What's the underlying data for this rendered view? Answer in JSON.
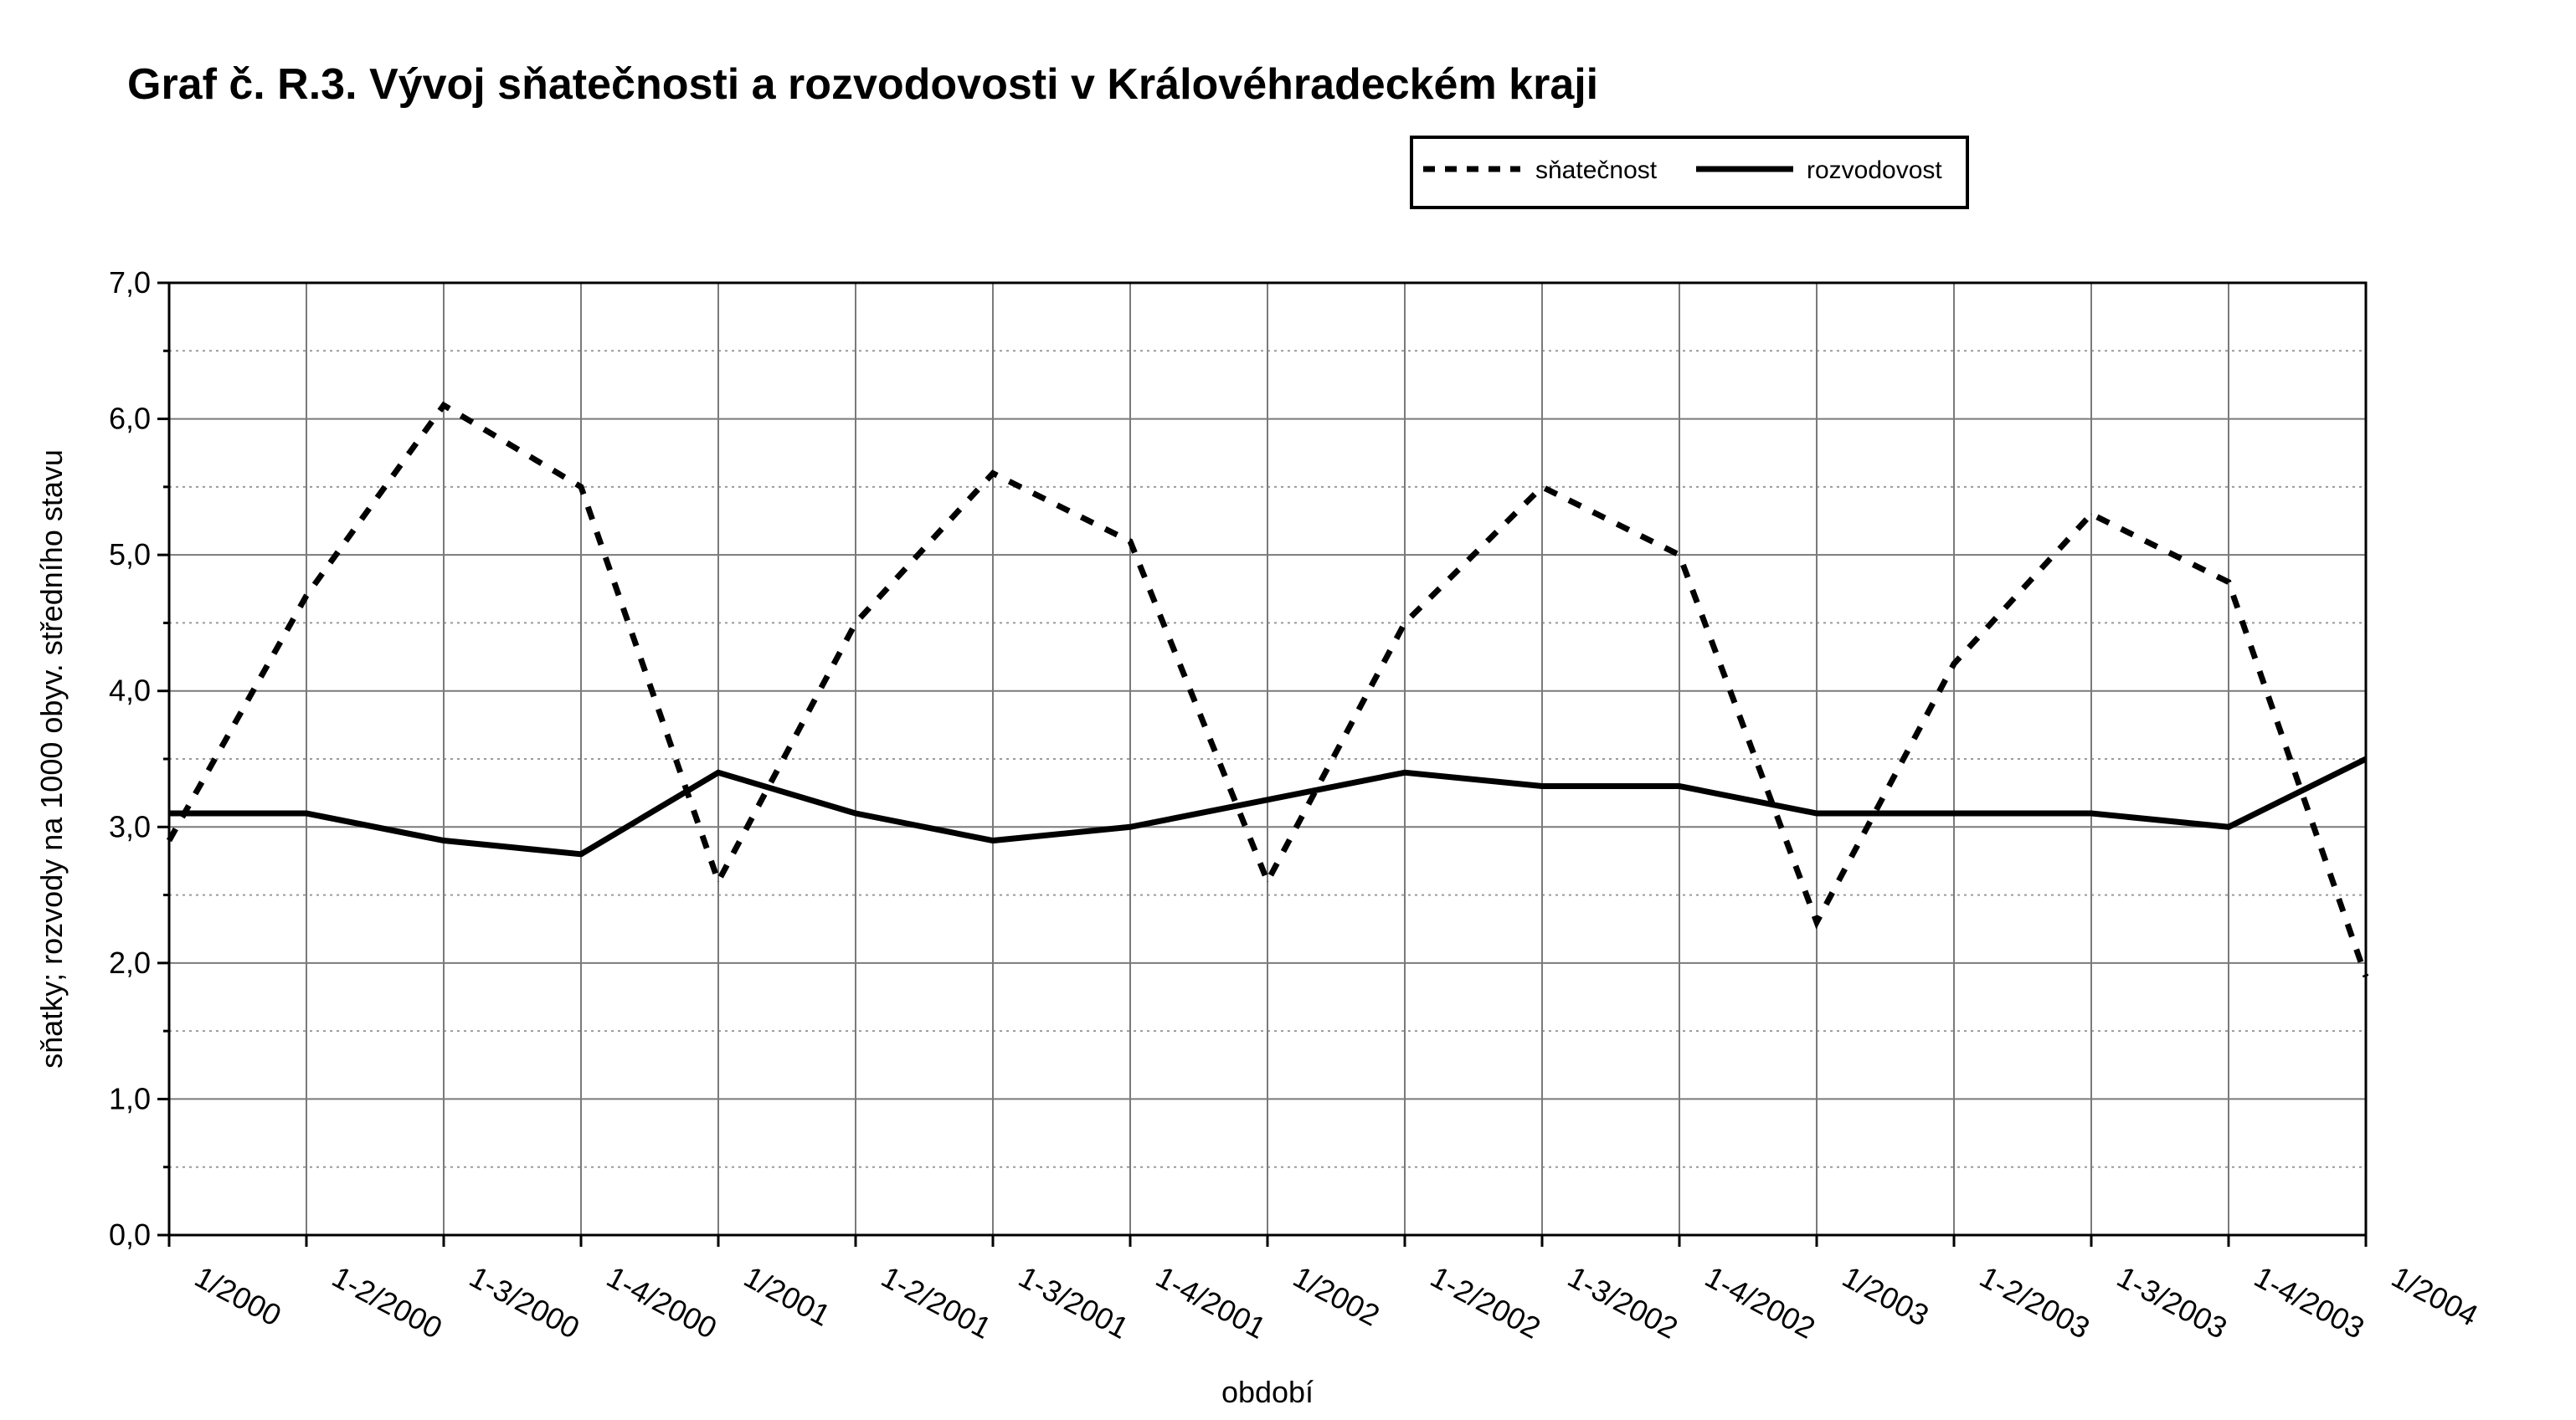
{
  "chart_data": {
    "type": "line",
    "title": "Graf č. R.3. Vývoj sňatečnosti a rozvodovosti v Královéhradeckém kraji",
    "xlabel": "období",
    "ylabel": "sňatky; rozvody na 1000 obyv. středního stavu",
    "ylim": [
      0,
      7
    ],
    "y_ticks": [
      "0,0",
      "1,0",
      "2,0",
      "3,0",
      "4,0",
      "5,0",
      "6,0",
      "7,0"
    ],
    "grid": true,
    "legend_position": "top-right",
    "categories": [
      "1/2000",
      "1-2/2000",
      "1-3/2000",
      "1-4/2000",
      "1/2001",
      "1-2/2001",
      "1-3/2001",
      "1-4/2001",
      "1/2002",
      "1-2/2002",
      "1-3/2002",
      "1-4/2002",
      "1/2003",
      "1-2/2003",
      "1-3/2003",
      "1-4/2003",
      "1/2004"
    ],
    "series": [
      {
        "name": "sňatečnost",
        "style": "dashed",
        "color": "#000000",
        "values": [
          2.9,
          4.7,
          6.1,
          5.5,
          2.6,
          4.5,
          5.6,
          5.1,
          2.6,
          4.5,
          5.5,
          5.0,
          2.3,
          4.2,
          5.3,
          4.8,
          1.9
        ]
      },
      {
        "name": "rozvodovost",
        "style": "solid",
        "color": "#000000",
        "values": [
          3.1,
          3.1,
          2.9,
          2.8,
          3.4,
          3.1,
          2.9,
          3.0,
          3.2,
          3.4,
          3.3,
          3.3,
          3.1,
          3.1,
          3.1,
          3.0,
          3.5
        ]
      }
    ]
  }
}
